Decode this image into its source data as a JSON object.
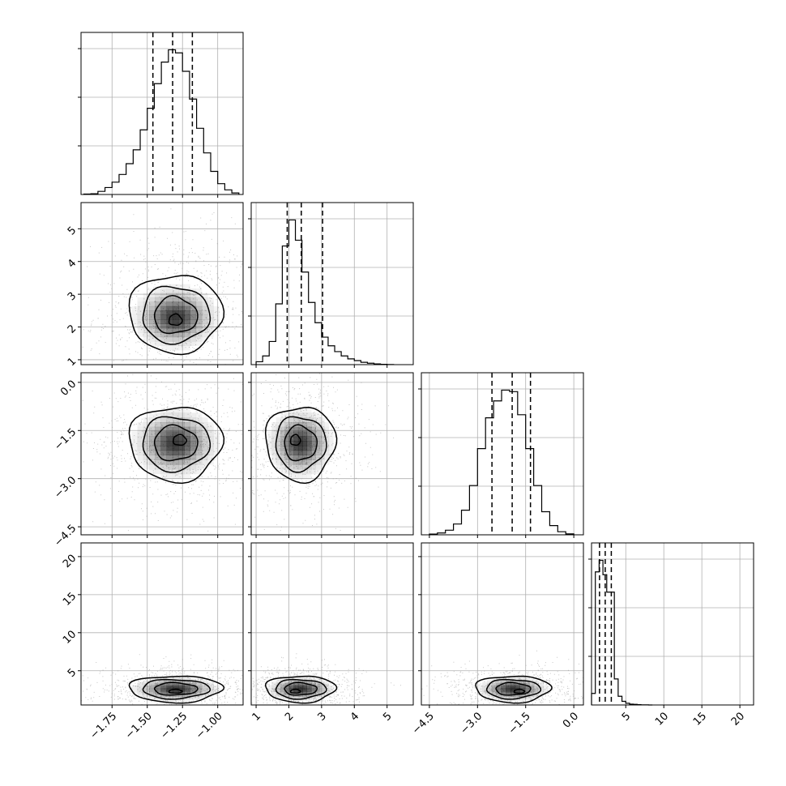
{
  "chart_data": {
    "type": "corner",
    "title": "",
    "n_params": 4,
    "params": [
      {
        "name": "",
        "range": [
          -1.97,
          -0.82
        ],
        "ticks": [
          -1.75,
          -1.5,
          -1.25,
          -1.0
        ],
        "tick_labels": [
          "−1.75",
          "−1.50",
          "−1.25",
          "−1.00"
        ]
      },
      {
        "name": "",
        "range": [
          0.85,
          5.8
        ],
        "ticks": [
          1,
          2,
          3,
          4,
          5
        ],
        "tick_labels": [
          "1",
          "2",
          "3",
          "4",
          "5"
        ]
      },
      {
        "name": "",
        "range": [
          -4.75,
          0.3
        ],
        "ticks": [
          -4.5,
          -3.0,
          -1.5,
          0.0
        ],
        "tick_labels": [
          "−4.5",
          "−3.0",
          "−1.5",
          "0.0"
        ]
      },
      {
        "name": "",
        "range": [
          0.5,
          21.8
        ],
        "ticks": [
          5,
          10,
          15,
          20
        ],
        "tick_labels": [
          "5",
          "10",
          "15",
          "20"
        ]
      }
    ],
    "quantiles": [
      [
        -1.46,
        -1.32,
        -1.18
      ],
      [
        1.95,
        2.38,
        3.03
      ],
      [
        -2.55,
        -1.92,
        -1.35
      ],
      [
        1.55,
        2.3,
        3.1
      ]
    ],
    "histograms": [
      {
        "edges": [
          -1.95,
          -1.9,
          -1.85,
          -1.8,
          -1.75,
          -1.7,
          -1.65,
          -1.6,
          -1.55,
          -1.5,
          -1.45,
          -1.4,
          -1.35,
          -1.3,
          -1.25,
          -1.2,
          -1.15,
          -1.1,
          -1.05,
          -1.0,
          -0.95,
          -0.9,
          -0.85
        ],
        "counts": [
          3,
          5,
          20,
          45,
          80,
          130,
          200,
          290,
          420,
          560,
          720,
          860,
          940,
          920,
          800,
          620,
          430,
          270,
          150,
          70,
          30,
          10
        ]
      },
      {
        "edges": [
          1.0,
          1.2,
          1.4,
          1.6,
          1.8,
          2.0,
          2.2,
          2.4,
          2.6,
          2.8,
          3.0,
          3.2,
          3.4,
          3.6,
          3.8,
          4.0,
          4.2,
          4.4,
          4.6,
          4.8,
          5.0,
          5.2
        ],
        "counts": [
          20,
          60,
          160,
          420,
          820,
          1000,
          860,
          640,
          430,
          290,
          190,
          130,
          90,
          60,
          40,
          28,
          16,
          10,
          5,
          2,
          1
        ]
      },
      {
        "edges": [
          -4.5,
          -4.25,
          -4.0,
          -3.75,
          -3.5,
          -3.25,
          -3.0,
          -2.75,
          -2.5,
          -2.25,
          -2.0,
          -1.75,
          -1.5,
          -1.25,
          -1.0,
          -0.75,
          -0.5,
          -0.25,
          0.0
        ],
        "counts": [
          5,
          12,
          30,
          70,
          160,
          320,
          560,
          760,
          870,
          940,
          930,
          780,
          560,
          320,
          150,
          60,
          20,
          6
        ]
      },
      {
        "edges": [
          0.5,
          1.0,
          1.5,
          2.0,
          2.5,
          3.0,
          3.5,
          4.0,
          4.5,
          5.0,
          5.5,
          6.0,
          6.5,
          7.0,
          7.5,
          8.0,
          8.5
        ],
        "counts": [
          80,
          920,
          1000,
          900,
          780,
          780,
          180,
          60,
          25,
          12,
          6,
          4,
          2,
          1,
          1,
          0
        ]
      }
    ],
    "joint": [
      {
        "i": 1,
        "j": 0,
        "center": [
          -1.3,
          2.3
        ],
        "sigma": [
          0.17,
          0.55
        ],
        "skew_y": 0.4,
        "peak": [
          -1.3,
          2.2
        ]
      },
      {
        "i": 2,
        "j": 0,
        "center": [
          -1.3,
          -1.9
        ],
        "sigma": [
          0.17,
          0.6
        ],
        "skew_y": 0.0,
        "peak": [
          -1.27,
          -1.8
        ]
      },
      {
        "i": 2,
        "j": 1,
        "center": [
          2.35,
          -1.9
        ],
        "sigma": [
          0.55,
          0.6
        ],
        "skew_y": 0.0,
        "peak": [
          2.2,
          -1.8
        ]
      },
      {
        "i": 3,
        "j": 0,
        "center": [
          -1.3,
          2.6
        ],
        "sigma": [
          0.17,
          0.9
        ],
        "skew_y": 0.0,
        "peak": [
          -1.3,
          2.3
        ]
      },
      {
        "i": 3,
        "j": 1,
        "center": [
          2.35,
          2.6
        ],
        "sigma": [
          0.55,
          0.9
        ],
        "skew_y": 0.0,
        "peak": [
          2.2,
          2.3
        ]
      },
      {
        "i": 3,
        "j": 2,
        "center": [
          -1.9,
          2.6
        ],
        "sigma": [
          0.6,
          0.9
        ],
        "skew_y": 0.0,
        "peak": [
          -1.7,
          2.3
        ]
      }
    ],
    "grid": true,
    "colors": {
      "line": "#000000",
      "grid": "#b0b0b0",
      "points": "#999999",
      "density": "#000000"
    }
  }
}
